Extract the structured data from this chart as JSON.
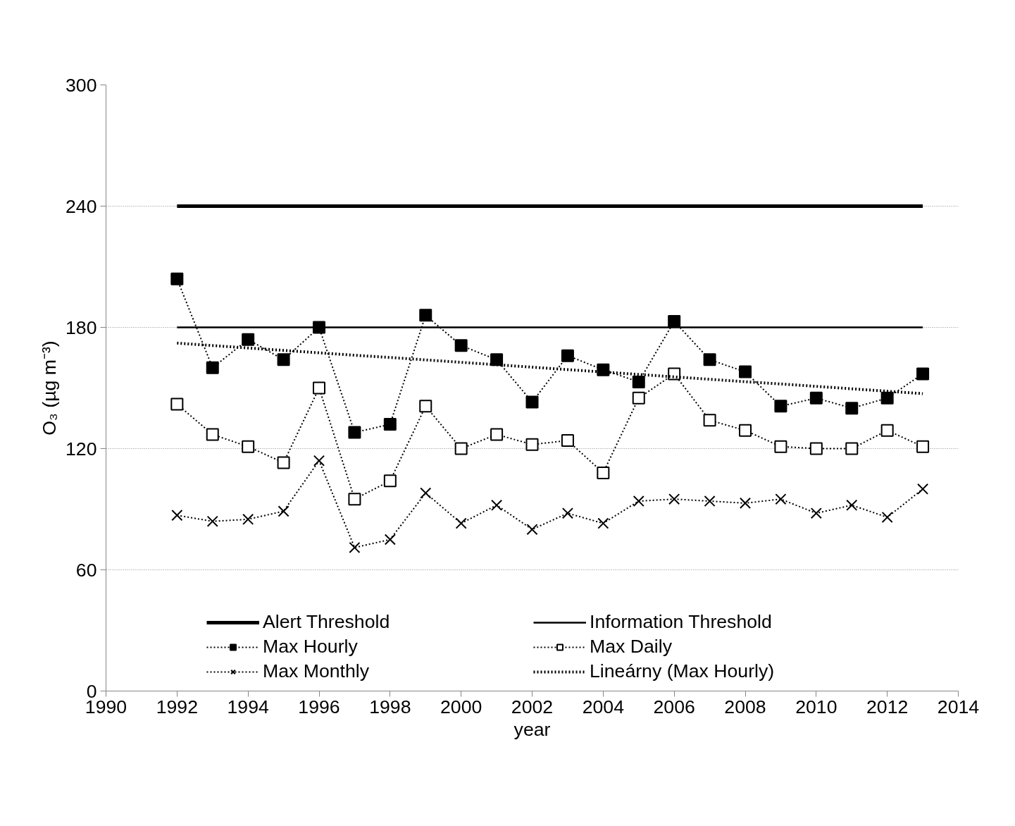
{
  "chart_data": {
    "type": "line",
    "xlabel": "year",
    "ylabel": "O₃ (µg m⁻³)",
    "x": [
      1992,
      1993,
      1994,
      1995,
      1996,
      1997,
      1998,
      1999,
      2000,
      2001,
      2002,
      2003,
      2004,
      2005,
      2006,
      2007,
      2008,
      2009,
      2010,
      2011,
      2012,
      2013
    ],
    "series": [
      {
        "name": "Alert Threshold",
        "color": "#000000",
        "values": [
          240,
          240,
          240,
          240,
          240,
          240,
          240,
          240,
          240,
          240,
          240,
          240,
          240,
          240,
          240,
          240,
          240,
          240,
          240,
          240,
          240,
          240
        ],
        "marker": "none",
        "line_style": "solid"
      },
      {
        "name": "Information Threshold",
        "color": "#000000",
        "values": [
          180,
          180,
          180,
          180,
          180,
          180,
          180,
          180,
          180,
          180,
          180,
          180,
          180,
          180,
          180,
          180,
          180,
          180,
          180,
          180,
          180,
          180
        ],
        "marker": "none",
        "line_style": "solid"
      },
      {
        "name": "Max Hourly",
        "color": "#000000",
        "values": [
          204,
          160,
          174,
          164,
          180,
          128,
          132,
          186,
          171,
          164,
          143,
          166,
          159,
          153,
          183,
          164,
          158,
          141,
          145,
          140,
          145,
          157
        ],
        "marker": "square",
        "line_style": "dotted"
      },
      {
        "name": "Max Daily",
        "color": "#000000",
        "values": [
          142,
          127,
          121,
          113,
          150,
          95,
          104,
          141,
          120,
          127,
          122,
          124,
          108,
          145,
          157,
          134,
          129,
          121,
          120,
          120,
          129,
          121
        ],
        "marker": "square",
        "line_style": "dotted"
      },
      {
        "name": "Max Monthly",
        "color": "#000000",
        "values": [
          87,
          84,
          85,
          89,
          114,
          71,
          75,
          98,
          83,
          92,
          80,
          88,
          83,
          94,
          95,
          94,
          93,
          95,
          88,
          92,
          86,
          100
        ],
        "marker": "cross",
        "line_style": "dotted"
      },
      {
        "name": "Lineárny (Max Hourly)",
        "color": "#000000",
        "values": [
          172.2,
          171.0,
          169.8,
          168.6,
          167.4,
          166.2,
          165.1,
          163.9,
          162.7,
          161.5,
          160.3,
          159.1,
          157.9,
          156.7,
          155.5,
          154.3,
          153.1,
          152.0,
          150.8,
          149.6,
          148.4,
          147.2
        ],
        "marker": "none",
        "line_style": "dotted"
      }
    ],
    "xlim": [
      1990,
      2014
    ],
    "xticks": [
      1990,
      1992,
      1994,
      1996,
      1998,
      2000,
      2002,
      2004,
      2006,
      2008,
      2010,
      2012,
      2014
    ],
    "ylim": [
      0,
      300
    ],
    "yticks": [
      0,
      60,
      120,
      180,
      240,
      300
    ],
    "grid": "y",
    "legend": "bottom"
  }
}
